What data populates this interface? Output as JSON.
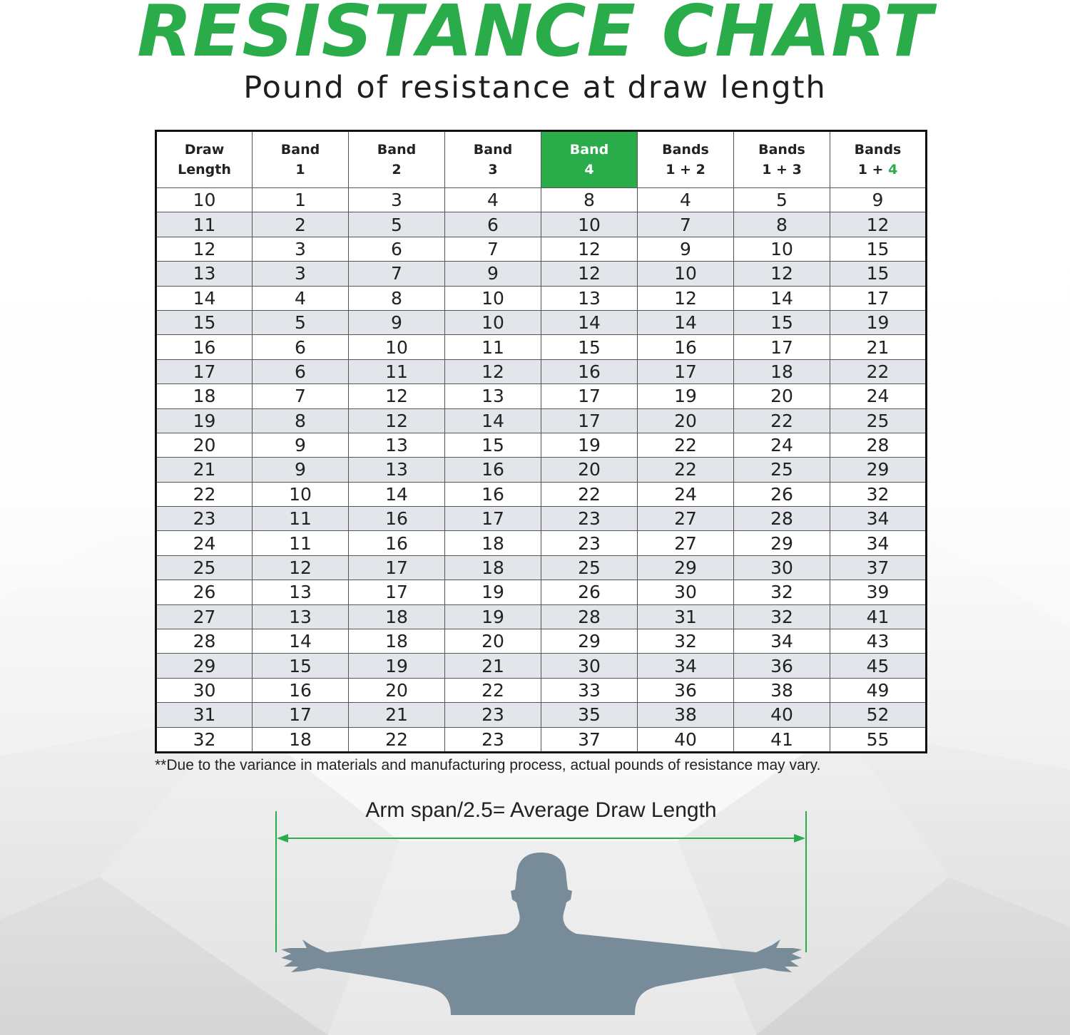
{
  "title": "RESISTANCE CHART",
  "subtitle": "Pound of resistance at draw length",
  "colors": {
    "accent": "#2bac4a",
    "row_stripe": "#e2e5ea",
    "figure": "#778b99"
  },
  "chart_data": {
    "type": "table",
    "title": "RESISTANCE CHART",
    "subtitle": "Pound of resistance at draw length",
    "highlighted_column": "Band 4",
    "columns": [
      {
        "line1": "Draw",
        "line2": "Length"
      },
      {
        "line1": "Band",
        "line2": "1"
      },
      {
        "line1": "Band",
        "line2": "2"
      },
      {
        "line1": "Band",
        "line2": "3"
      },
      {
        "line1": "Band",
        "line2": "4"
      },
      {
        "line1": "Bands",
        "line2": "1 + 2"
      },
      {
        "line1": "Bands",
        "line2": "1 + 3"
      },
      {
        "line1": "Bands",
        "line2a": "1 + ",
        "line2b": "4"
      }
    ],
    "rows": [
      [
        10,
        1,
        3,
        4,
        8,
        4,
        5,
        9
      ],
      [
        11,
        2,
        5,
        6,
        10,
        7,
        8,
        12
      ],
      [
        12,
        3,
        6,
        7,
        12,
        9,
        10,
        15
      ],
      [
        13,
        3,
        7,
        9,
        12,
        10,
        12,
        15
      ],
      [
        14,
        4,
        8,
        10,
        13,
        12,
        14,
        17
      ],
      [
        15,
        5,
        9,
        10,
        14,
        14,
        15,
        19
      ],
      [
        16,
        6,
        10,
        11,
        15,
        16,
        17,
        21
      ],
      [
        17,
        6,
        11,
        12,
        16,
        17,
        18,
        22
      ],
      [
        18,
        7,
        12,
        13,
        17,
        19,
        20,
        24
      ],
      [
        19,
        8,
        12,
        14,
        17,
        20,
        22,
        25
      ],
      [
        20,
        9,
        13,
        15,
        19,
        22,
        24,
        28
      ],
      [
        21,
        9,
        13,
        16,
        20,
        22,
        25,
        29
      ],
      [
        22,
        10,
        14,
        16,
        22,
        24,
        26,
        32
      ],
      [
        23,
        11,
        16,
        17,
        23,
        27,
        28,
        34
      ],
      [
        24,
        11,
        16,
        18,
        23,
        27,
        29,
        34
      ],
      [
        25,
        12,
        17,
        18,
        25,
        29,
        30,
        37
      ],
      [
        26,
        13,
        17,
        19,
        26,
        30,
        32,
        39
      ],
      [
        27,
        13,
        18,
        19,
        28,
        31,
        32,
        41
      ],
      [
        28,
        14,
        18,
        20,
        29,
        32,
        34,
        43
      ],
      [
        29,
        15,
        19,
        21,
        30,
        34,
        36,
        45
      ],
      [
        30,
        16,
        20,
        22,
        33,
        36,
        38,
        49
      ],
      [
        31,
        17,
        21,
        23,
        35,
        38,
        40,
        52
      ],
      [
        32,
        18,
        22,
        23,
        37,
        40,
        41,
        55
      ]
    ]
  },
  "footnote": "**Due to the variance in materials and manufacturing process, actual pounds of resistance may vary.",
  "armspan_label": "Arm span/2.5= Average Draw Length"
}
